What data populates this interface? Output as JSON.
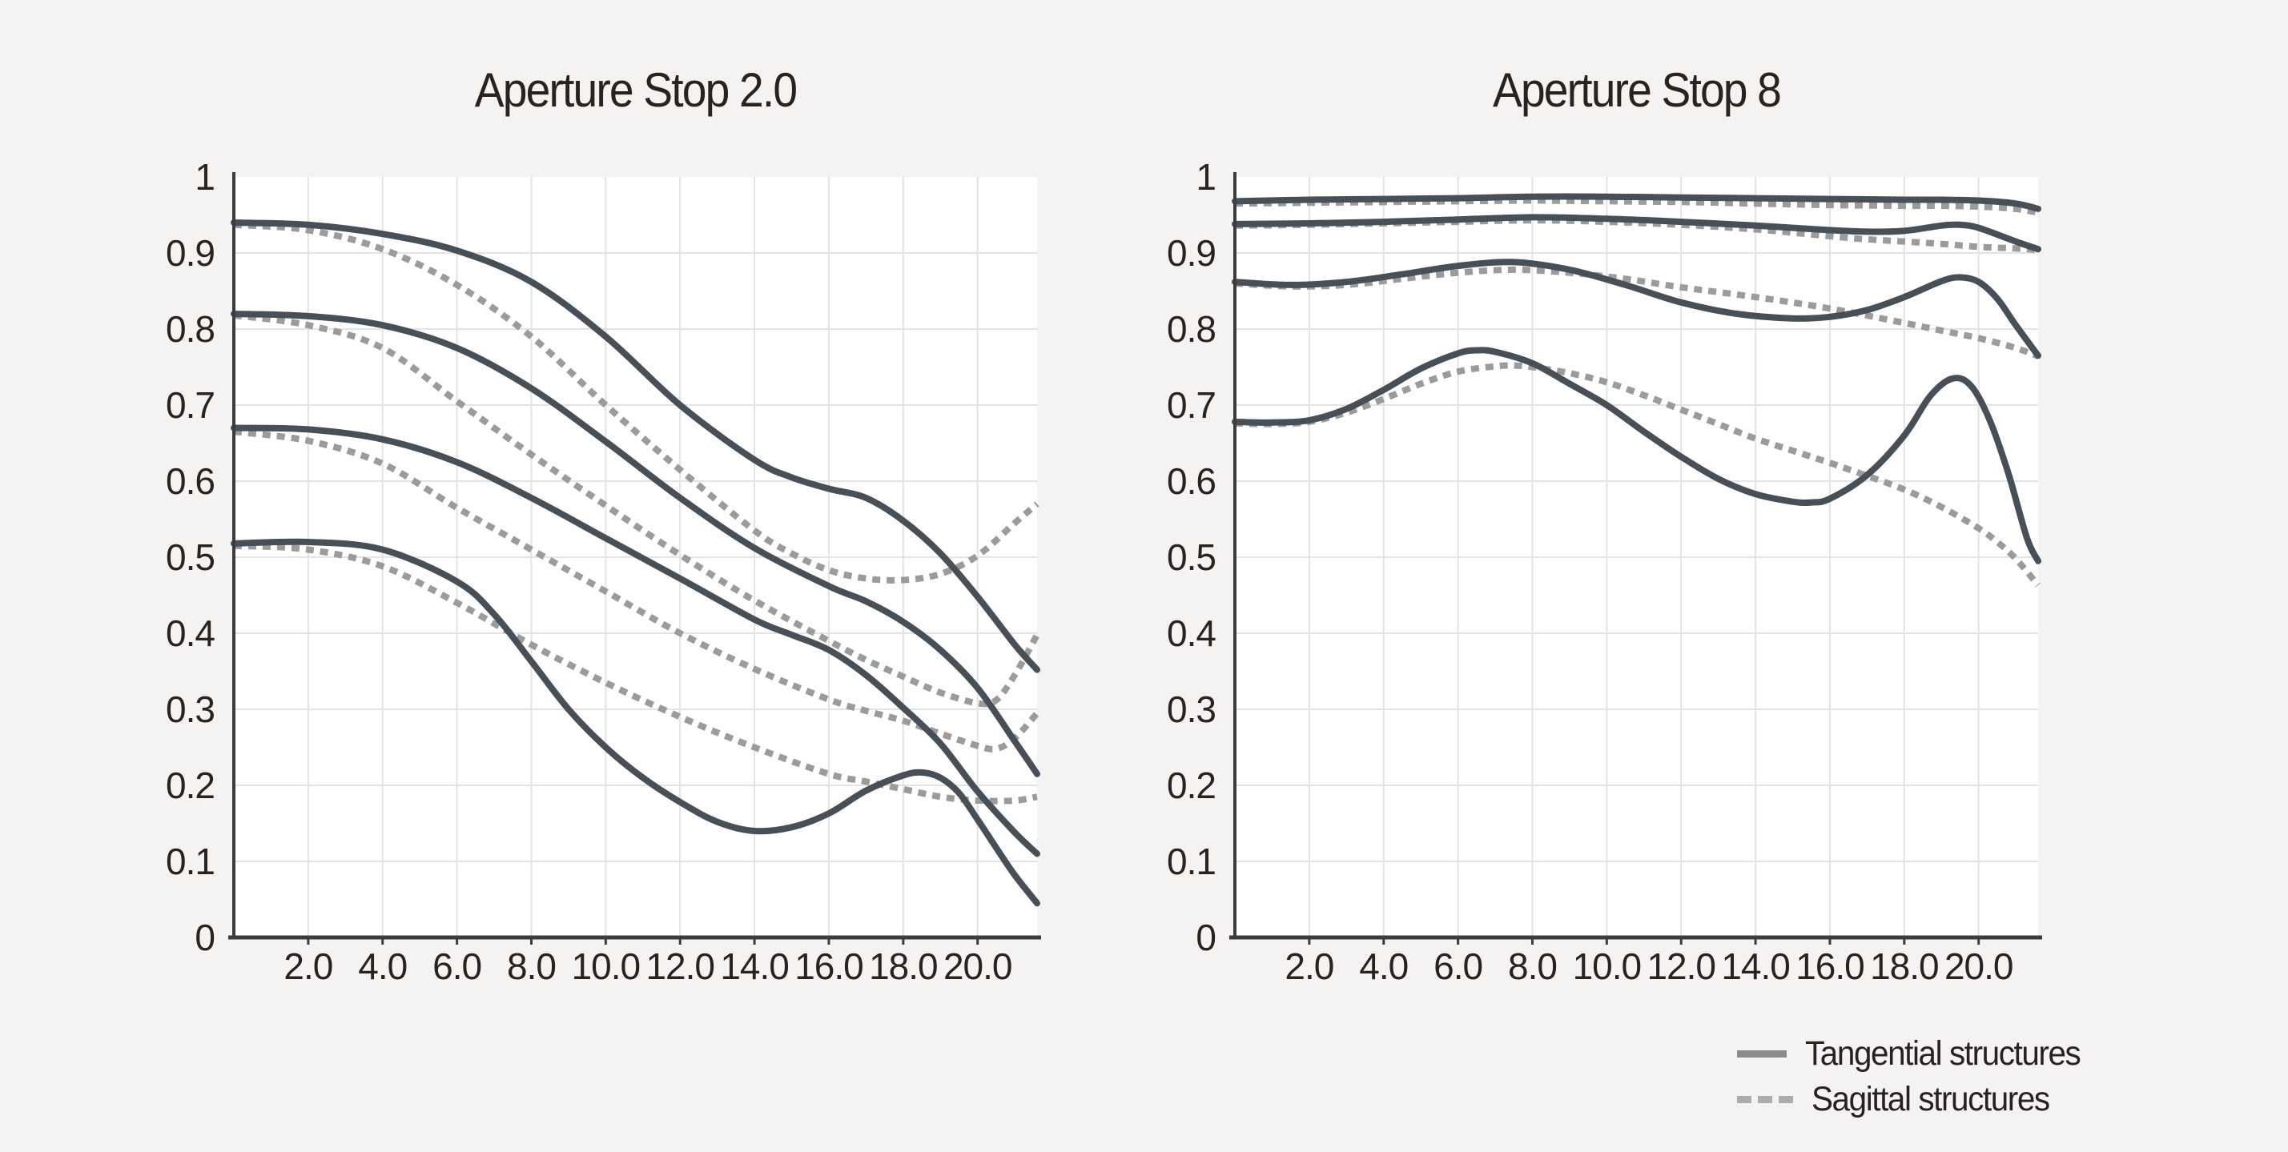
{
  "page": {
    "background": "#f4f3f1"
  },
  "colors": {
    "background": "#f4f3f1",
    "plot_background": "#ffffff",
    "grid": "#e3e3e3",
    "axis": "#3c3c3c",
    "tangential_line": "#474f57",
    "sagittal_line": "#9b9b9b",
    "text": "#29231f",
    "legend_solid_swatch": "#8c8c8c",
    "legend_dashed_swatch": "#ababab"
  },
  "legend": {
    "position": "bottom-right",
    "items": [
      {
        "label": "Tangential structures",
        "style": "solid"
      },
      {
        "label": "Sagittal structures",
        "style": "dashed"
      }
    ]
  },
  "chart_data": [
    {
      "type": "line",
      "title": "Aperture Stop 2.0",
      "xlabel": "",
      "ylabel": "",
      "xlim": [
        0,
        21.6
      ],
      "ylim": [
        0,
        1
      ],
      "grid": true,
      "x_ticks": [
        2,
        4,
        6,
        8,
        10,
        12,
        14,
        16,
        18,
        20
      ],
      "x_tick_labels": [
        "2.0",
        "4.0",
        "6.0",
        "8.0",
        "10.0",
        "12.0",
        "14.0",
        "16.0",
        "18.0",
        "20.0"
      ],
      "y_ticks": [
        0,
        0.1,
        0.2,
        0.3,
        0.4,
        0.5,
        0.6,
        0.7,
        0.8,
        0.9,
        1
      ],
      "y_tick_labels": [
        "0",
        "0.1",
        "0.2",
        "0.3",
        "0.4",
        "0.5",
        "0.6",
        "0.7",
        "0.8",
        "0.9",
        "1"
      ],
      "series": [
        {
          "name": "Sagittal structures",
          "group": "sagittal",
          "line": "dashed",
          "x": [
            0,
            2,
            4,
            6,
            8,
            10,
            12,
            14,
            15,
            16,
            17,
            18,
            19,
            20,
            21,
            21.6
          ],
          "y": [
            0.937,
            0.93,
            0.905,
            0.858,
            0.79,
            0.7,
            0.615,
            0.535,
            0.505,
            0.483,
            0.472,
            0.47,
            0.478,
            0.502,
            0.545,
            0.57
          ]
        },
        {
          "name": "Sagittal structures",
          "group": "sagittal",
          "line": "dashed",
          "x": [
            0,
            2,
            4,
            6,
            8,
            10,
            12,
            14,
            16,
            17,
            18,
            19,
            20,
            20.5,
            21,
            21.6
          ],
          "y": [
            0.818,
            0.805,
            0.775,
            0.705,
            0.635,
            0.568,
            0.503,
            0.443,
            0.39,
            0.365,
            0.343,
            0.322,
            0.308,
            0.312,
            0.345,
            0.398
          ]
        },
        {
          "name": "Sagittal structures",
          "group": "sagittal",
          "line": "dashed",
          "x": [
            0,
            2,
            4,
            6,
            8,
            10,
            12,
            14,
            16,
            17,
            18,
            19,
            20,
            20.5,
            21,
            21.6
          ],
          "y": [
            0.665,
            0.653,
            0.623,
            0.565,
            0.51,
            0.455,
            0.4,
            0.353,
            0.313,
            0.298,
            0.285,
            0.268,
            0.252,
            0.248,
            0.262,
            0.295
          ]
        },
        {
          "name": "Sagittal structures",
          "group": "sagittal",
          "line": "dashed",
          "x": [
            0,
            2,
            4,
            6,
            8,
            10,
            12,
            14,
            16,
            17,
            18,
            19,
            20,
            21,
            21.6
          ],
          "y": [
            0.515,
            0.51,
            0.488,
            0.44,
            0.385,
            0.335,
            0.29,
            0.25,
            0.215,
            0.205,
            0.195,
            0.185,
            0.18,
            0.18,
            0.185
          ]
        },
        {
          "name": "Tangential structures",
          "group": "tangential",
          "line": "solid",
          "x": [
            0,
            2,
            4,
            6,
            8,
            10,
            12,
            14,
            15,
            16,
            17,
            18,
            19,
            20,
            21,
            21.6
          ],
          "y": [
            0.94,
            0.937,
            0.925,
            0.903,
            0.862,
            0.79,
            0.7,
            0.628,
            0.605,
            0.59,
            0.578,
            0.548,
            0.505,
            0.448,
            0.385,
            0.352
          ]
        },
        {
          "name": "Tangential structures",
          "group": "tangential",
          "line": "solid",
          "x": [
            0,
            2,
            4,
            6,
            8,
            10,
            12,
            14,
            16,
            17,
            18,
            19,
            20,
            21,
            21.6
          ],
          "y": [
            0.82,
            0.817,
            0.805,
            0.775,
            0.722,
            0.652,
            0.578,
            0.512,
            0.462,
            0.442,
            0.415,
            0.378,
            0.328,
            0.258,
            0.215
          ]
        },
        {
          "name": "Tangential structures",
          "group": "tangential",
          "line": "solid",
          "x": [
            0,
            2,
            4,
            6,
            8,
            10,
            12,
            14,
            15,
            16,
            17,
            18,
            19,
            20,
            21,
            21.6
          ],
          "y": [
            0.67,
            0.668,
            0.655,
            0.625,
            0.578,
            0.525,
            0.472,
            0.418,
            0.398,
            0.378,
            0.345,
            0.302,
            0.255,
            0.192,
            0.138,
            0.11
          ]
        },
        {
          "name": "Tangential structures",
          "group": "tangential",
          "line": "solid",
          "x": [
            0,
            2,
            4,
            6,
            7,
            8,
            9,
            10,
            11,
            12,
            13,
            14,
            15,
            16,
            17,
            18,
            18.5,
            19,
            19.5,
            20,
            20.5,
            21,
            21.6
          ],
          "y": [
            0.518,
            0.52,
            0.51,
            0.468,
            0.425,
            0.363,
            0.3,
            0.25,
            0.21,
            0.178,
            0.152,
            0.14,
            0.145,
            0.163,
            0.193,
            0.213,
            0.217,
            0.21,
            0.19,
            0.155,
            0.118,
            0.082,
            0.045
          ]
        }
      ]
    },
    {
      "type": "line",
      "title": "Aperture Stop 8",
      "xlabel": "",
      "ylabel": "",
      "xlim": [
        0,
        21.6
      ],
      "ylim": [
        0,
        1
      ],
      "grid": true,
      "x_ticks": [
        2,
        4,
        6,
        8,
        10,
        12,
        14,
        16,
        18,
        20
      ],
      "x_tick_labels": [
        "2.0",
        "4.0",
        "6.0",
        "8.0",
        "10.0",
        "12.0",
        "14.0",
        "16.0",
        "18.0",
        "20.0"
      ],
      "y_ticks": [
        0,
        0.1,
        0.2,
        0.3,
        0.4,
        0.5,
        0.6,
        0.7,
        0.8,
        0.9,
        1
      ],
      "y_tick_labels": [
        "0",
        "0.1",
        "0.2",
        "0.3",
        "0.4",
        "0.5",
        "0.6",
        "0.7",
        "0.8",
        "0.9",
        "1"
      ],
      "series": [
        {
          "name": "Sagittal structures",
          "group": "sagittal",
          "line": "dashed",
          "x": [
            0,
            2,
            4,
            6,
            8,
            10,
            12,
            14,
            16,
            18,
            19,
            20,
            21,
            21.6
          ],
          "y": [
            0.965,
            0.966,
            0.967,
            0.968,
            0.969,
            0.968,
            0.967,
            0.965,
            0.963,
            0.962,
            0.962,
            0.961,
            0.958,
            0.953
          ]
        },
        {
          "name": "Sagittal structures",
          "group": "sagittal",
          "line": "dashed",
          "x": [
            0,
            2,
            4,
            6,
            8,
            10,
            12,
            14,
            16,
            17,
            18,
            19,
            20,
            21,
            21.6
          ],
          "y": [
            0.936,
            0.937,
            0.939,
            0.941,
            0.943,
            0.941,
            0.937,
            0.931,
            0.922,
            0.918,
            0.915,
            0.912,
            0.908,
            0.906,
            0.904
          ]
        },
        {
          "name": "Sagittal structures",
          "group": "sagittal",
          "line": "dashed",
          "x": [
            0,
            1.5,
            3,
            4.5,
            6,
            7.5,
            9,
            10.5,
            12,
            14,
            16,
            18,
            19,
            20,
            21,
            21.6
          ],
          "y": [
            0.86,
            0.856,
            0.858,
            0.866,
            0.874,
            0.878,
            0.874,
            0.866,
            0.855,
            0.842,
            0.827,
            0.808,
            0.798,
            0.788,
            0.775,
            0.764
          ]
        },
        {
          "name": "Sagittal structures",
          "group": "sagittal",
          "line": "dashed",
          "x": [
            0,
            1,
            2,
            3,
            4,
            5,
            6,
            7,
            7.5,
            8,
            9,
            10,
            11,
            12,
            13,
            14,
            15,
            16,
            17,
            18,
            19,
            20,
            20.5,
            21,
            21.6
          ],
          "y": [
            0.676,
            0.675,
            0.678,
            0.69,
            0.708,
            0.728,
            0.744,
            0.751,
            0.752,
            0.75,
            0.742,
            0.73,
            0.713,
            0.694,
            0.675,
            0.656,
            0.64,
            0.624,
            0.607,
            0.589,
            0.566,
            0.538,
            0.52,
            0.498,
            0.463
          ]
        },
        {
          "name": "Tangential structures",
          "group": "tangential",
          "line": "solid",
          "x": [
            0,
            2,
            4,
            6,
            8,
            10,
            12,
            14,
            16,
            18,
            19,
            20,
            21,
            21.6
          ],
          "y": [
            0.968,
            0.97,
            0.971,
            0.972,
            0.974,
            0.974,
            0.973,
            0.972,
            0.971,
            0.97,
            0.97,
            0.969,
            0.965,
            0.958
          ]
        },
        {
          "name": "Tangential structures",
          "group": "tangential",
          "line": "solid",
          "x": [
            0,
            2,
            4,
            6,
            8,
            10,
            12,
            14,
            16,
            17,
            18,
            19,
            19.5,
            20,
            21,
            21.6
          ],
          "y": [
            0.938,
            0.939,
            0.941,
            0.944,
            0.947,
            0.945,
            0.941,
            0.936,
            0.93,
            0.928,
            0.929,
            0.936,
            0.937,
            0.933,
            0.915,
            0.905
          ]
        },
        {
          "name": "Tangential structures",
          "group": "tangential",
          "line": "solid",
          "x": [
            0,
            1.5,
            3,
            4.5,
            6,
            7.5,
            9,
            10.5,
            12,
            13.5,
            15,
            16,
            17,
            18,
            19,
            19.5,
            20,
            20.5,
            21,
            21.6
          ],
          "y": [
            0.862,
            0.858,
            0.862,
            0.872,
            0.883,
            0.888,
            0.878,
            0.858,
            0.835,
            0.82,
            0.814,
            0.816,
            0.825,
            0.842,
            0.863,
            0.868,
            0.862,
            0.84,
            0.805,
            0.765
          ]
        },
        {
          "name": "Tangential structures",
          "group": "tangential",
          "line": "solid",
          "x": [
            0,
            1,
            2,
            3,
            4,
            5,
            6,
            6.5,
            7,
            8,
            9,
            10,
            11,
            12,
            13,
            14,
            15,
            15.5,
            16,
            17,
            18,
            18.7,
            19.3,
            19.8,
            20.3,
            20.8,
            21.3,
            21.6
          ],
          "y": [
            0.678,
            0.677,
            0.68,
            0.695,
            0.72,
            0.748,
            0.768,
            0.772,
            0.77,
            0.755,
            0.728,
            0.7,
            0.665,
            0.632,
            0.603,
            0.583,
            0.573,
            0.572,
            0.577,
            0.608,
            0.66,
            0.712,
            0.735,
            0.725,
            0.68,
            0.61,
            0.525,
            0.495
          ]
        }
      ]
    }
  ]
}
